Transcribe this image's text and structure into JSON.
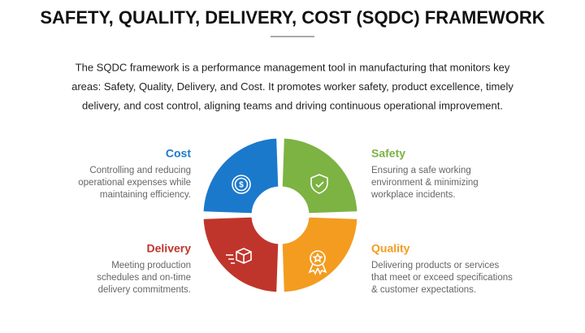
{
  "header": {
    "title": "SAFETY, QUALITY, DELIVERY, COST (SQDC) FRAMEWORK"
  },
  "intro": {
    "lines": [
      "The SQDC framework is a performance management tool in manufacturing that monitors key",
      "areas: Safety, Quality, Delivery, and Cost. It promotes worker safety, product excellence, timely",
      "delivery, and cost control, aligning teams and driving continuous operational improvement."
    ]
  },
  "items": [
    {
      "title": "Cost",
      "color": "#1b79cc",
      "lines": [
        "Controlling and reducing",
        "operational expenses while",
        "maintaining efficiency."
      ]
    },
    {
      "title": "Safety",
      "color": "#7cb342",
      "lines": [
        "Ensuring a safe working",
        "environment & minimizing",
        "workplace incidents."
      ]
    },
    {
      "title": "Delivery",
      "color": "#c0352b",
      "lines": [
        "Meeting production",
        "schedules and on-time",
        "delivery commitments."
      ]
    },
    {
      "title": "Quality",
      "color": "#f39c1f",
      "lines": [
        "Delivering products or services",
        "that meet or exceed specifications",
        "& customer expectations."
      ]
    }
  ]
}
